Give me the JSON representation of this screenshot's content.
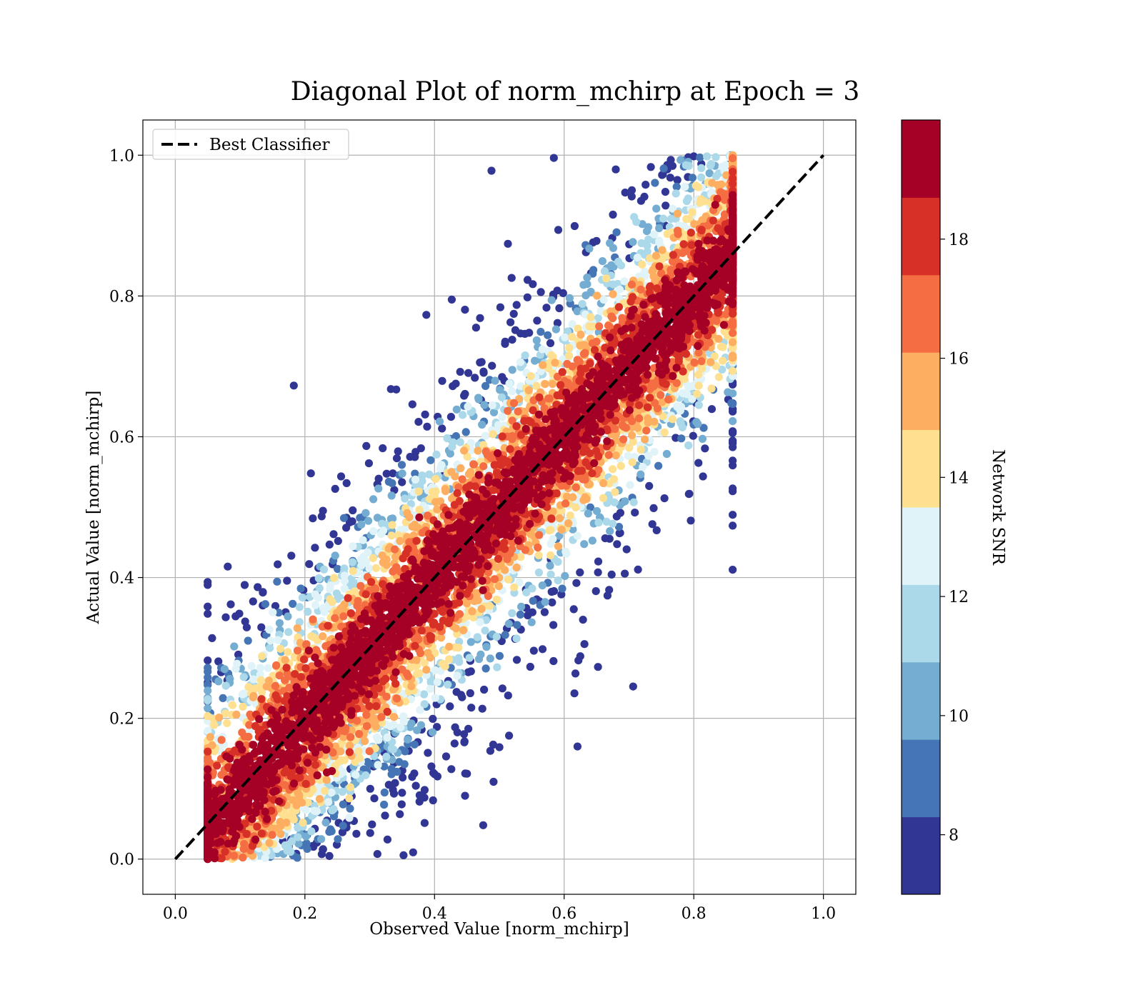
{
  "chart_data": {
    "type": "scatter",
    "title": "Diagonal Plot of norm_mchirp at Epoch = 3",
    "xlabel": "Observed Value [norm_mchirp]",
    "ylabel": "Actual Value [norm_mchirp]",
    "xlim": [
      -0.05,
      1.05
    ],
    "ylim": [
      -0.05,
      1.05
    ],
    "xticks": [
      0.0,
      0.2,
      0.4,
      0.6,
      0.8,
      1.0
    ],
    "yticks": [
      0.0,
      0.2,
      0.4,
      0.6,
      0.8,
      1.0
    ],
    "grid": true,
    "legend": {
      "position": "top-left",
      "entries": [
        {
          "label": "Best Classifier",
          "style": "dashed",
          "color": "#000000"
        }
      ]
    },
    "reference_line": {
      "name": "Best Classifier",
      "x": [
        0.0,
        1.0
      ],
      "y": [
        0.0,
        1.0
      ]
    },
    "point_cloud_summary": {
      "description": "dense band of points around diagonal; high SNR near diagonal, low SNR scattered at edges",
      "x_range": [
        0.05,
        0.86
      ],
      "y_range": [
        0.0,
        1.0
      ],
      "approx_offset_upper_edge": 0.27,
      "approx_offset_lower_edge": -0.24
    },
    "colorbar": {
      "label": "Network SNR",
      "range": [
        7,
        20
      ],
      "ticks": [
        8,
        10,
        12,
        14,
        16,
        18
      ],
      "levels": [
        7,
        8.3,
        9.6,
        10.9,
        12.2,
        13.5,
        14.8,
        16.1,
        17.4,
        18.7,
        20
      ],
      "colors": [
        "#313695",
        "#4575b4",
        "#74add1",
        "#abd9e9",
        "#e0f3f8",
        "#fee090",
        "#fdae61",
        "#f46d43",
        "#d73027",
        "#a50026"
      ]
    }
  }
}
